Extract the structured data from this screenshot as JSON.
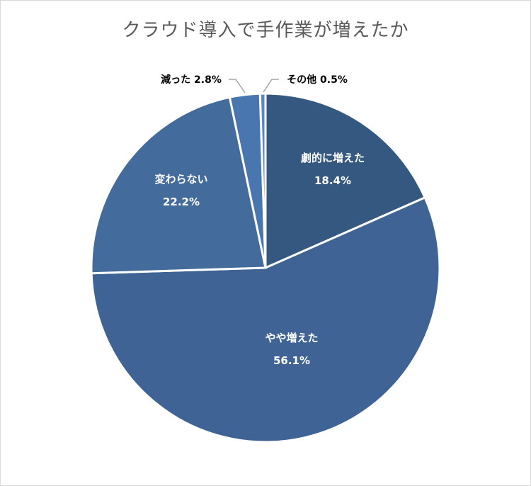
{
  "title": "クラウド導入で手作業が増えたか",
  "chart_data": {
    "type": "pie",
    "title": "クラウド導入で手作業が増えたか",
    "start_angle_deg": 0,
    "direction": "clockwise",
    "slices": [
      {
        "label": "劇的に増えた",
        "value": 18.4,
        "value_label": "18.4%",
        "color": "#345880",
        "label_pos": "inside"
      },
      {
        "label": "やや増えた",
        "value": 56.1,
        "value_label": "56.1%",
        "color": "#3e6394",
        "label_pos": "inside"
      },
      {
        "label": "変わらない",
        "value": 22.2,
        "value_label": "22.2%",
        "color": "#436b9c",
        "label_pos": "inside"
      },
      {
        "label": "減った",
        "value": 2.8,
        "value_label": "2.8%",
        "color": "#4a76b0",
        "label_pos": "outside"
      },
      {
        "label": "その他",
        "value": 0.5,
        "value_label": "0.5%",
        "color": "#5a87c0",
        "label_pos": "outside"
      }
    ]
  }
}
